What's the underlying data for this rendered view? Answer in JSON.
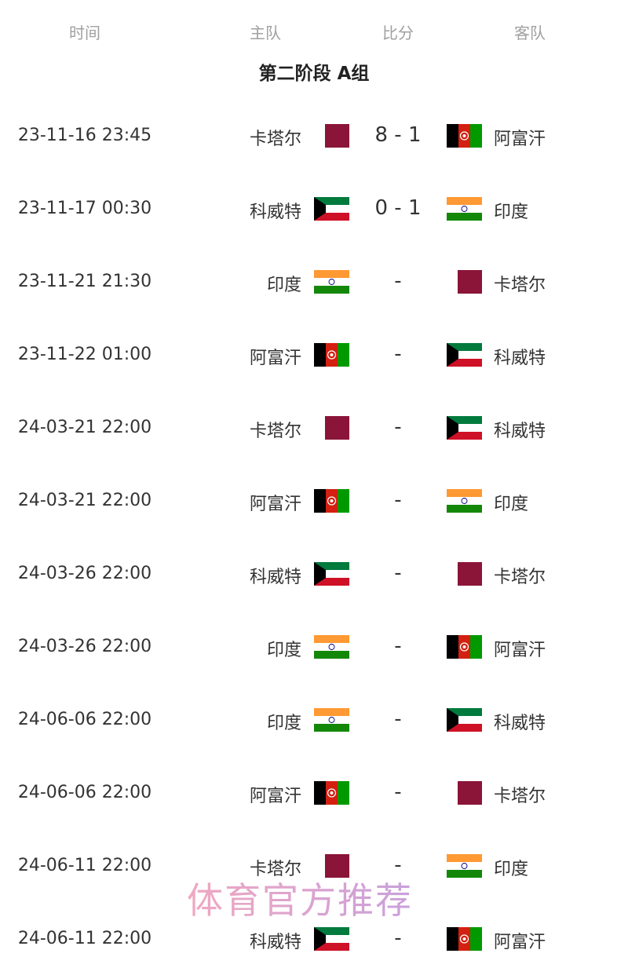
{
  "headers": {
    "time": "时间",
    "home": "主队",
    "score": "比分",
    "away": "客队"
  },
  "group_title": "第二阶段 A组",
  "matches": [
    {
      "time": "23-11-16 23:45",
      "home": "卡塔尔",
      "home_flag": "qatar",
      "score": "8 - 1",
      "away": "阿富汗",
      "away_flag": "afghanistan"
    },
    {
      "time": "23-11-17 00:30",
      "home": "科威特",
      "home_flag": "kuwait",
      "score": "0 - 1",
      "away": "印度",
      "away_flag": "india"
    },
    {
      "time": "23-11-21 21:30",
      "home": "印度",
      "home_flag": "india",
      "score": "-",
      "away": "卡塔尔",
      "away_flag": "qatar"
    },
    {
      "time": "23-11-22 01:00",
      "home": "阿富汗",
      "home_flag": "afghanistan",
      "score": "-",
      "away": "科威特",
      "away_flag": "kuwait"
    },
    {
      "time": "24-03-21 22:00",
      "home": "卡塔尔",
      "home_flag": "qatar",
      "score": "-",
      "away": "科威特",
      "away_flag": "kuwait"
    },
    {
      "time": "24-03-21 22:00",
      "home": "阿富汗",
      "home_flag": "afghanistan",
      "score": "-",
      "away": "印度",
      "away_flag": "india"
    },
    {
      "time": "24-03-26 22:00",
      "home": "科威特",
      "home_flag": "kuwait",
      "score": "-",
      "away": "卡塔尔",
      "away_flag": "qatar"
    },
    {
      "time": "24-03-26 22:00",
      "home": "印度",
      "home_flag": "india",
      "score": "-",
      "away": "阿富汗",
      "away_flag": "afghanistan"
    },
    {
      "time": "24-06-06 22:00",
      "home": "印度",
      "home_flag": "india",
      "score": "-",
      "away": "科威特",
      "away_flag": "kuwait"
    },
    {
      "time": "24-06-06 22:00",
      "home": "阿富汗",
      "home_flag": "afghanistan",
      "score": "-",
      "away": "卡塔尔",
      "away_flag": "qatar"
    },
    {
      "time": "24-06-11 22:00",
      "home": "卡塔尔",
      "home_flag": "qatar",
      "score": "-",
      "away": "印度",
      "away_flag": "india"
    },
    {
      "time": "24-06-11 22:00",
      "home": "科威特",
      "home_flag": "kuwait",
      "score": "-",
      "away": "阿富汗",
      "away_flag": "afghanistan"
    }
  ],
  "watermark": "体育官方推荐"
}
